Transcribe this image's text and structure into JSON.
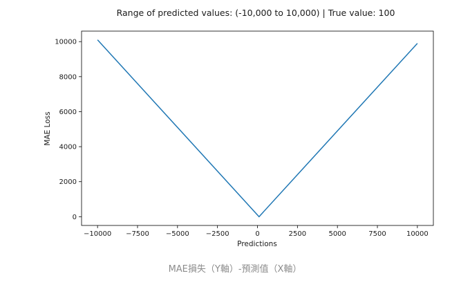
{
  "chart_data": {
    "type": "line",
    "title": "Range of predicted values: (-10,000 to 10,000) | True value: 100",
    "xlabel": "Predictions",
    "ylabel": "MAE Loss",
    "xlim": [
      -11000,
      11000
    ],
    "ylim": [
      -500,
      10600
    ],
    "x_ticks": [
      -10000,
      -7500,
      -5000,
      -2500,
      0,
      2500,
      5000,
      7500,
      10000
    ],
    "x_tick_labels": [
      "−10000",
      "−7500",
      "−5000",
      "−2500",
      "0",
      "2500",
      "5000",
      "7500",
      "10000"
    ],
    "y_ticks": [
      0,
      2000,
      4000,
      6000,
      8000,
      10000
    ],
    "y_tick_labels": [
      "0",
      "2000",
      "4000",
      "6000",
      "8000",
      "10000"
    ],
    "grid": false,
    "series": [
      {
        "color": "#1f77b4",
        "x": [
          -10000,
          100,
          10000
        ],
        "y": [
          10100,
          0,
          9900
        ]
      }
    ]
  },
  "caption": "MAE損失（Y軸）-預測值（X軸）"
}
